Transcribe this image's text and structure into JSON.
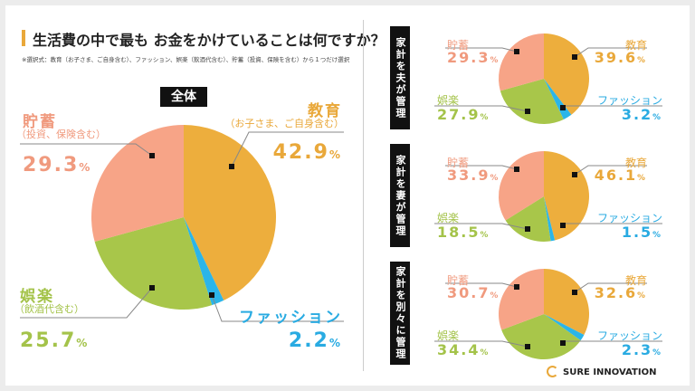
{
  "title": "生活費の中で最も お金をかけていることは何ですか？",
  "note": "※選択式：教育（お子さま、ご自身含む）、ファッション、娯楽（飲酒代含む）、貯蓄（投資、保険を含む）から１つだけ選択",
  "brand": "SURE INNOVATION",
  "colors": {
    "education": "#EDAE3D",
    "fashion": "#2BB5E9",
    "entertainment": "#A8C64A",
    "savings": "#F7A487"
  },
  "chart_data": [
    {
      "type": "pie",
      "title": "全体",
      "categories": [
        "教育",
        "ファッション",
        "娯楽",
        "貯蓄"
      ],
      "sublabels": [
        "（お子さま、ご自身含む）",
        "",
        "（飲酒代含む）",
        "（投資、保険含む）"
      ],
      "values": [
        42.9,
        2.2,
        25.7,
        29.3
      ],
      "unit": "%"
    },
    {
      "type": "pie",
      "title": "家計を夫が管理",
      "categories": [
        "教育",
        "ファッション",
        "娯楽",
        "貯蓄"
      ],
      "values": [
        39.6,
        3.2,
        27.9,
        29.3
      ],
      "unit": "%"
    },
    {
      "type": "pie",
      "title": "家計を妻が管理",
      "categories": [
        "教育",
        "ファッション",
        "娯楽",
        "貯蓄"
      ],
      "values": [
        46.1,
        1.5,
        18.5,
        33.9
      ],
      "unit": "%"
    },
    {
      "type": "pie",
      "title": "家計を別々に管理",
      "categories": [
        "教育",
        "ファッション",
        "娯楽",
        "貯蓄"
      ],
      "values": [
        32.6,
        2.3,
        34.4,
        30.7
      ],
      "unit": "%"
    }
  ]
}
